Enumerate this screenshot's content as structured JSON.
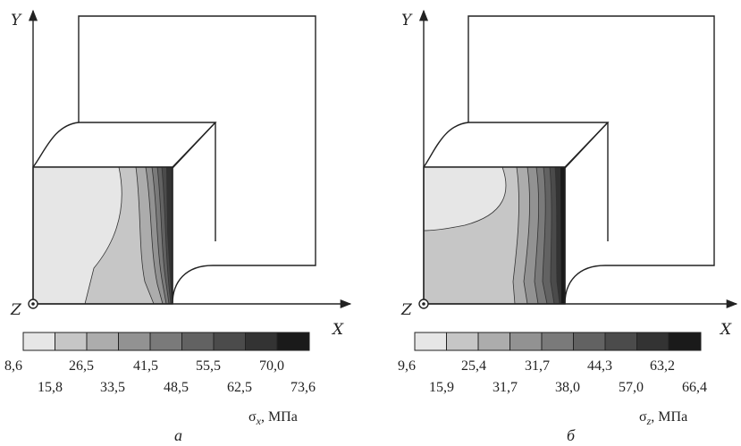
{
  "axes": {
    "y": "Y",
    "z": "Z",
    "x": "X"
  },
  "panels": [
    {
      "id": "a",
      "caption": "а",
      "quantity": "σx, МПа",
      "quantity_symbol": "σ",
      "quantity_sub": "x",
      "quantity_unit": ", МПа",
      "scale_colors": [
        "#e6e6e6",
        "#c6c6c6",
        "#acacac",
        "#929292",
        "#7a7a7a",
        "#626262",
        "#4b4b4b",
        "#333333",
        "#1a1a1a"
      ],
      "scale_top": [
        "8,6",
        "26,5",
        "41,5",
        "55,5",
        "70,0"
      ],
      "scale_bottom": [
        "15,8",
        "33,5",
        "48,5",
        "62,5",
        "73,6"
      ]
    },
    {
      "id": "b",
      "caption": "б",
      "quantity": "σz, МПа",
      "quantity_symbol": "σ",
      "quantity_sub": "z",
      "quantity_unit": ", МПа",
      "scale_colors": [
        "#e6e6e6",
        "#c6c6c6",
        "#acacac",
        "#929292",
        "#7a7a7a",
        "#626262",
        "#4b4b4b",
        "#333333",
        "#1a1a1a"
      ],
      "scale_top": [
        "9,6",
        "25,4",
        "31,7",
        "44,3",
        "63,2"
      ],
      "scale_bottom": [
        "15,9",
        "31,7",
        "38,0",
        "57,0",
        "66,4"
      ]
    }
  ]
}
